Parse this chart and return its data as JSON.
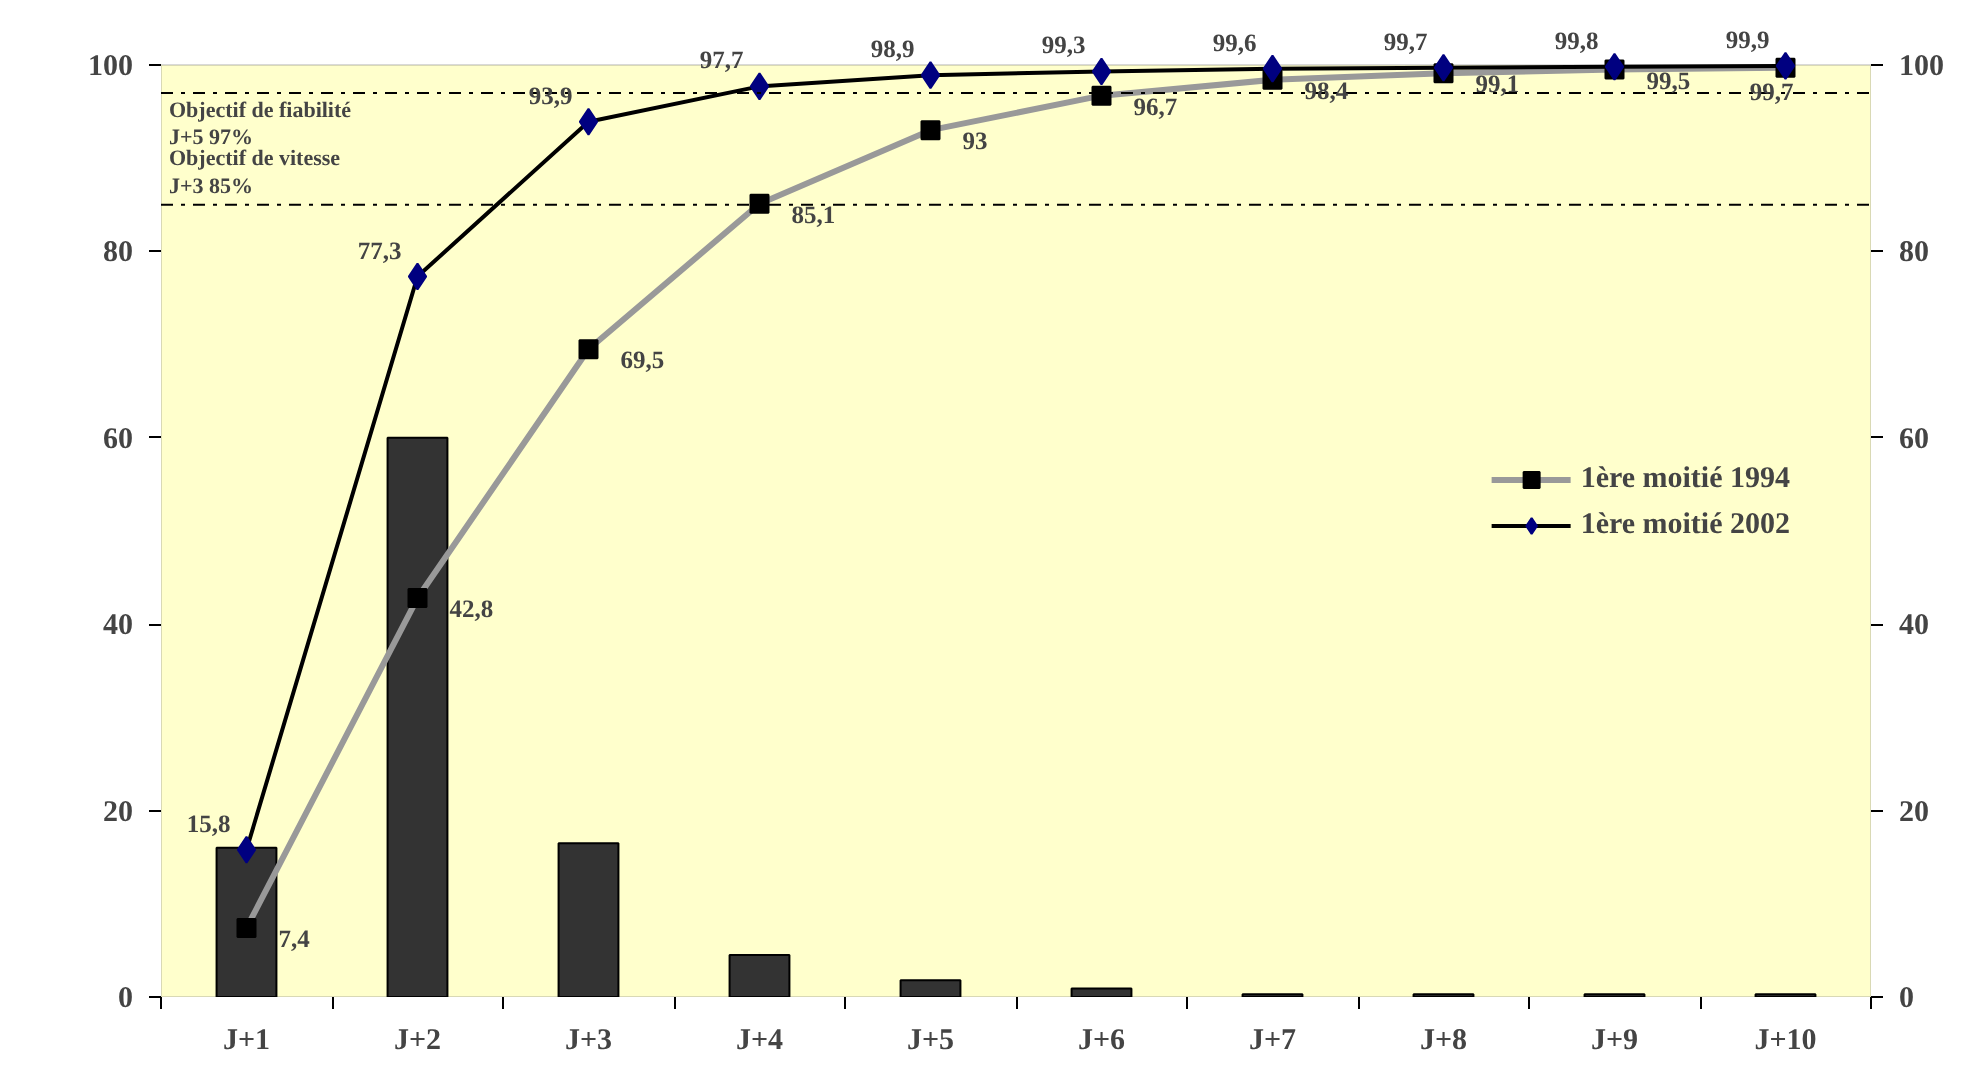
{
  "chart_data": {
    "type": "line",
    "categories": [
      "J+1",
      "J+2",
      "J+3",
      "J+4",
      "J+5",
      "J+6",
      "J+7",
      "J+8",
      "J+9",
      "J+10"
    ],
    "series": [
      {
        "type": "bar",
        "color": "#333333",
        "values": [
          16,
          60,
          16.5,
          4.5,
          1.8,
          0.9,
          0.3,
          0.3,
          0.3,
          0.3
        ]
      },
      {
        "name": "1ère moitié 1994",
        "color": "#999999",
        "marker": "square",
        "values": [
          7.4,
          42.8,
          69.5,
          85.1,
          93,
          96.7,
          98.4,
          99.1,
          99.5,
          99.7
        ],
        "value_labels": [
          "7,4",
          "42,8",
          "69,5",
          "85,1",
          "93",
          "96,7",
          "98,4",
          "99,1",
          "99,5",
          "99,7"
        ]
      },
      {
        "name": "1ère moitié 2002",
        "color": "#000000",
        "marker": "diamond",
        "values": [
          15.8,
          77.3,
          93.9,
          97.7,
          98.9,
          99.3,
          99.6,
          99.7,
          99.8,
          99.9
        ],
        "value_labels": [
          "15,8",
          "77,3",
          "93,9",
          "97,7",
          "98,9",
          "99,3",
          "99,6",
          "99,7",
          "99,8",
          "99,9"
        ]
      }
    ],
    "ylim": [
      0,
      100
    ],
    "yticks": [
      0,
      20,
      40,
      60,
      80,
      100
    ],
    "y2lim": [
      0,
      100
    ],
    "y2ticks": [
      0,
      20,
      40,
      60,
      80,
      100
    ],
    "ref_lines": [
      {
        "axis": "y",
        "value": 97,
        "label": "Objectif de fiabilité\n J+5 97%",
        "line_style": "dashdot"
      },
      {
        "axis": "y",
        "value": 85,
        "label": "Objectif de vitesse\nJ+3 85%",
        "line_style": "dashdot"
      }
    ],
    "grid": false,
    "legend": "right"
  }
}
